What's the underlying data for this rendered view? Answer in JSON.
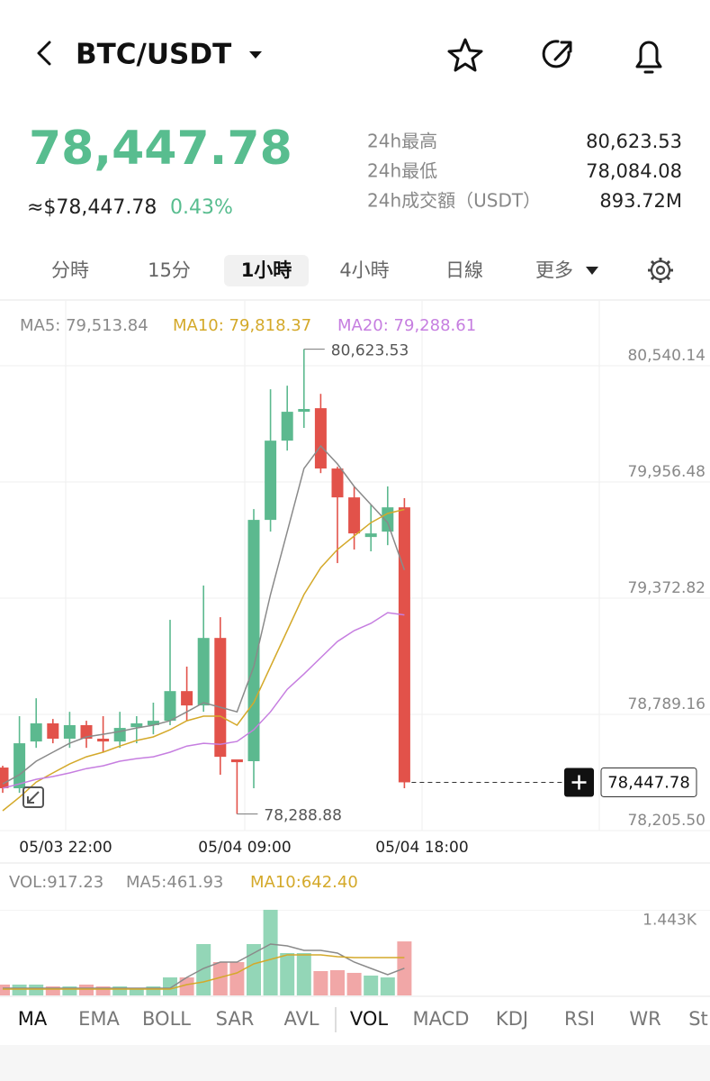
{
  "header": {
    "title": "BTC/USDT"
  },
  "ticker": {
    "price": "78,447.78",
    "usd_price": "≈$78,447.78",
    "change": "0.43%"
  },
  "stats": [
    {
      "label": "24h最高",
      "value": "80,623.53"
    },
    {
      "label": "24h最低",
      "value": "78,084.08"
    },
    {
      "label": "24h成交額（USDT）",
      "value": "893.72M"
    }
  ],
  "intervals": {
    "items": [
      "分時",
      "15分",
      "1小時",
      "4小時",
      "日線",
      "更多"
    ],
    "active": 2
  },
  "chart_data": [
    {
      "type": "candlestick",
      "open": [
        78522,
        78418,
        78653,
        78744,
        78667,
        78735,
        78667,
        78653,
        78725,
        78735,
        78757,
        78906,
        78834,
        79173,
        78563,
        78554,
        79766,
        80164,
        80309,
        80327,
        80024,
        79879,
        79680,
        79707,
        79829
      ],
      "high": [
        78531,
        78780,
        78870,
        78766,
        78802,
        78757,
        78780,
        78802,
        78780,
        78848,
        79264,
        79029,
        79436,
        79277,
        78563,
        79820,
        80422,
        80440,
        80623.53,
        80399,
        80033,
        79934,
        79843,
        79934,
        79875
      ],
      "low": [
        78395,
        78395,
        78621,
        78644,
        78621,
        78621,
        78599,
        78621,
        78644,
        78689,
        78735,
        78757,
        78802,
        78486,
        78288.88,
        78418,
        79707,
        80114,
        80228,
        80001,
        79549,
        79617,
        79608,
        79639,
        78418
      ],
      "close": [
        78418,
        78644,
        78744,
        78667,
        78735,
        78667,
        78653,
        78721,
        78744,
        78757,
        78906,
        78834,
        79173,
        78576,
        78549,
        79766,
        80164,
        80309,
        80323,
        80024,
        79879,
        79698,
        79698,
        79829,
        78447.78
      ],
      "colors": {
        "up": "#5cb98f",
        "down": "#e2524a"
      },
      "series": [
        {
          "name": "MA5: 79,513.84",
          "color": "#8a8a8a",
          "values": [
            78440,
            78486,
            78554,
            78599,
            78644,
            78676,
            78689,
            78703,
            78721,
            78735,
            78757,
            78802,
            78848,
            78825,
            78802,
            79029,
            79391,
            79707,
            80024,
            80137,
            80047,
            79934,
            79843,
            79752,
            79513.84
          ]
        },
        {
          "name": "MA10: 79,818.37",
          "color": "#d4a92a",
          "values": [
            78305,
            78373,
            78449,
            78495,
            78540,
            78576,
            78599,
            78630,
            78658,
            78676,
            78712,
            78757,
            78780,
            78780,
            78735,
            78848,
            79029,
            79210,
            79391,
            79526,
            79617,
            79685,
            79752,
            79798,
            79818.37
          ]
        },
        {
          "name": "MA20: 79,288.61",
          "color": "#c67ee0",
          "values": [
            78418,
            78440,
            78463,
            78477,
            78495,
            78517,
            78531,
            78554,
            78567,
            78576,
            78599,
            78630,
            78644,
            78639,
            78653,
            78712,
            78802,
            78915,
            78992,
            79074,
            79155,
            79210,
            79246,
            79300,
            79288.61
          ]
        }
      ],
      "ylim": [
        78205.5,
        80866
      ],
      "yticks": [
        {
          "value": 80540.14,
          "label": "80,540.14"
        },
        {
          "value": 79956.48,
          "label": "79,956.48"
        },
        {
          "value": 79372.82,
          "label": "79,372.82"
        },
        {
          "value": 78789.16,
          "label": "78,789.16"
        },
        {
          "value": 78205.5,
          "label": "78,205.50"
        }
      ],
      "x_labels": [
        "05/03 22:00",
        "05/04 09:00",
        "05/04 18:00"
      ],
      "high_label": {
        "value": 80623.53,
        "label": "80,623.53"
      },
      "low_label": {
        "value": 78288.88,
        "label": "78,288.88"
      },
      "last_price": {
        "value": 78447.78,
        "label": "78,447.78"
      },
      "grid": true
    },
    {
      "type": "bar",
      "title": "VOL:917.23",
      "values": [
        184,
        184,
        184,
        153,
        153,
        184,
        153,
        153,
        107,
        153,
        306,
        306,
        872,
        566,
        566,
        872,
        1454,
        719,
        719,
        413,
        428,
        383,
        337,
        306,
        917.23
      ],
      "colors": {
        "up": "#93d6b7",
        "down": "#f1a7a7"
      },
      "series": [
        {
          "name": "MA5:461.93",
          "color": "#8a8a8a",
          "values": [
            122,
            122,
            122,
            122,
            122,
            122,
            122,
            122,
            122,
            122,
            122,
            306,
            459,
            566,
            566,
            719,
            872,
            842,
            765,
            765,
            719,
            566,
            459,
            352,
            461.93
          ]
        },
        {
          "name": "MA10:642.40",
          "color": "#d4a92a",
          "values": [
            107,
            107,
            107,
            107,
            107,
            107,
            107,
            107,
            107,
            107,
            107,
            184,
            230,
            306,
            383,
            536,
            612,
            689,
            689,
            689,
            658,
            642,
            642,
            642,
            642.4
          ]
        }
      ],
      "ylim": [
        0,
        2218
      ],
      "yticks": [
        {
          "value": 1443,
          "label": "1.443K"
        }
      ]
    }
  ],
  "indicators": {
    "items": [
      "MA",
      "EMA",
      "BOLL",
      "SAR",
      "AVL",
      "VOL",
      "MACD",
      "KDJ",
      "RSI",
      "WR",
      "St"
    ],
    "active": [
      0,
      5
    ]
  }
}
